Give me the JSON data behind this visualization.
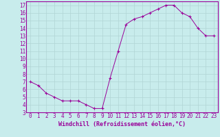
{
  "hours": [
    0,
    1,
    2,
    3,
    4,
    5,
    6,
    7,
    8,
    9,
    10,
    11,
    12,
    13,
    14,
    15,
    16,
    17,
    18,
    19,
    20,
    21,
    22,
    23
  ],
  "windchill": [
    7.0,
    6.5,
    5.5,
    5.0,
    4.5,
    4.5,
    4.5,
    4.0,
    3.5,
    3.5,
    7.5,
    11.0,
    14.5,
    15.2,
    15.5,
    16.0,
    16.5,
    17.0,
    17.0,
    16.0,
    15.5,
    14.0,
    13.0,
    13.0
  ],
  "line_color": "#990099",
  "marker_color": "#990099",
  "bg_color": "#c8ecec",
  "grid_color": "#b0d4d4",
  "border_color": "#990099",
  "xlabel": "Windchill (Refroidissement éolien,°C)",
  "xlim": [
    -0.5,
    23.5
  ],
  "ylim": [
    3,
    17.5
  ],
  "yticks": [
    3,
    4,
    5,
    6,
    7,
    8,
    9,
    10,
    11,
    12,
    13,
    14,
    15,
    16,
    17
  ],
  "xticks": [
    0,
    1,
    2,
    3,
    4,
    5,
    6,
    7,
    8,
    9,
    10,
    11,
    12,
    13,
    14,
    15,
    16,
    17,
    18,
    19,
    20,
    21,
    22,
    23
  ],
  "label_fontsize": 6,
  "tick_fontsize": 5.5
}
